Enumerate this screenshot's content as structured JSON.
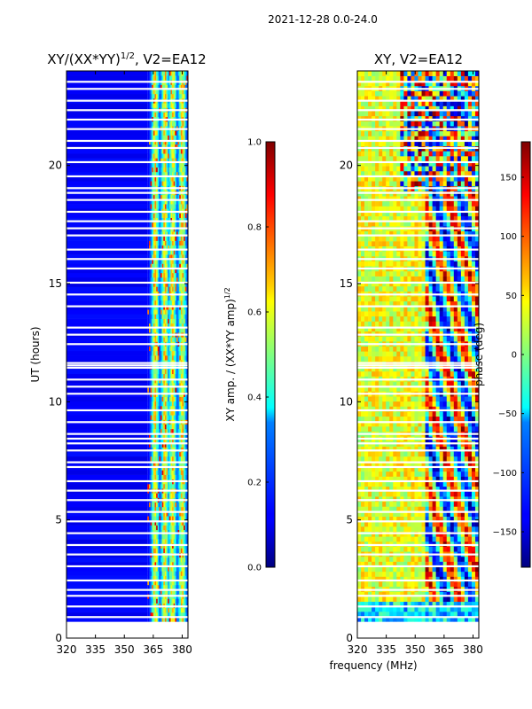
{
  "suptitle": "2021-12-28 0.0-24.0",
  "xlabel_shared": "frequency (MHz)",
  "chart_data": [
    {
      "type": "heatmap",
      "title_main": "XY/(XX*YY)",
      "title_exp": "1/2",
      "title_tail": ", V2=EA12",
      "ylabel": "UT (hours)",
      "xlim": [
        320,
        383
      ],
      "ylim": [
        0,
        24
      ],
      "xticks": [
        "320",
        "335",
        "350",
        "365",
        "380"
      ],
      "xtick_values": [
        320,
        335,
        350,
        365,
        380
      ],
      "yticks": [
        "0",
        "5",
        "10",
        "15",
        "20"
      ],
      "ytick_values": [
        0,
        5,
        10,
        15,
        20
      ],
      "colorbar": {
        "label_main": "XY amp. / (XX*YY amp)",
        "label_exp": "1/2",
        "range": [
          0.0,
          1.0
        ],
        "ticks": [
          "0.0",
          "0.2",
          "0.4",
          "0.6",
          "0.8",
          "1.0"
        ],
        "tick_values": [
          0.0,
          0.2,
          0.4,
          0.6,
          0.8,
          1.0
        ]
      },
      "data_start_hour": 0.7,
      "blank_hours": [
        0.85,
        1.3,
        1.75,
        2.0,
        2.4,
        3.0,
        3.5,
        3.9,
        4.4,
        4.9,
        5.3,
        5.8,
        6.2,
        6.6,
        7.2,
        7.4,
        7.9,
        8.2,
        8.4,
        8.6,
        9.1,
        9.6,
        10.3,
        10.6,
        10.9,
        11.4,
        11.5,
        11.6,
        12.4,
        12.8,
        13.1,
        14.0,
        14.5,
        15.0,
        15.6,
        16.0,
        16.4,
        17.0,
        17.3,
        17.6,
        18.0,
        18.5,
        18.8,
        19.0,
        19.5,
        20.1,
        20.7,
        21.0,
        21.5,
        21.9,
        22.3,
        22.7,
        23.2,
        23.5
      ],
      "low_region_max_MHz": 362,
      "high_channel_centers_MHz": [
        366,
        371,
        375,
        380
      ]
    },
    {
      "type": "heatmap",
      "title": "XY, V2=EA12",
      "xlim": [
        320,
        383
      ],
      "ylim": [
        0,
        24
      ],
      "xticks": [
        "320",
        "335",
        "350",
        "365",
        "380"
      ],
      "xtick_values": [
        320,
        335,
        350,
        365,
        380
      ],
      "yticks": [
        "0",
        "5",
        "10",
        "15",
        "20"
      ],
      "ytick_values": [
        0,
        5,
        10,
        15,
        20
      ],
      "colorbar": {
        "label": "phase (deg)",
        "range": [
          -180,
          180
        ],
        "ticks": [
          "−150",
          "−100",
          "−50",
          "0",
          "50",
          "100",
          "150"
        ],
        "tick_values": [
          -150,
          -100,
          -50,
          0,
          50,
          100,
          150
        ]
      },
      "data_start_hour": 0.7,
      "blank_hours": [
        0.85,
        1.3,
        1.75,
        2.0,
        2.4,
        3.0,
        3.5,
        3.9,
        4.4,
        4.9,
        5.3,
        5.8,
        6.2,
        6.6,
        7.2,
        7.4,
        7.9,
        8.2,
        8.4,
        8.6,
        9.1,
        9.6,
        10.3,
        10.6,
        10.9,
        11.4,
        11.5,
        11.6,
        12.4,
        12.8,
        13.1,
        14.0,
        14.5,
        15.0,
        15.6,
        16.0,
        16.4,
        17.0,
        17.3,
        17.6,
        18.0,
        18.5,
        18.8,
        19.0,
        19.5,
        20.1,
        20.7,
        21.0,
        21.5,
        21.9,
        22.3,
        22.7,
        23.2,
        23.5
      ]
    }
  ]
}
